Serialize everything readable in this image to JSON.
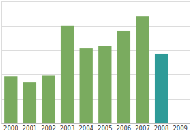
{
  "chart_data": {
    "type": "bar",
    "categories": [
      "2000",
      "2001",
      "2002",
      "2003",
      "2004",
      "2005",
      "2006",
      "2007",
      "2008",
      "2009"
    ],
    "values": [
      1.92,
      1.7,
      1.97,
      4.0,
      3.07,
      3.18,
      3.8,
      4.38,
      2.85,
      null
    ],
    "colors": [
      "#7aab5f",
      "#7aab5f",
      "#7aab5f",
      "#7aab5f",
      "#7aab5f",
      "#7aab5f",
      "#7aab5f",
      "#7aab5f",
      "#2e9b98",
      "#7aab5f"
    ],
    "ylim": [
      0,
      5
    ],
    "yticks": [
      0,
      1,
      2,
      3,
      4,
      5
    ],
    "grid": true,
    "tick_labels": "x"
  }
}
